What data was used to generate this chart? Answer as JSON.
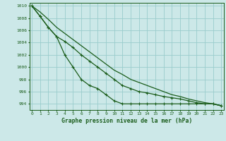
{
  "xlabel": "Graphe pression niveau de la mer (hPa)",
  "x": [
    0,
    1,
    2,
    3,
    4,
    5,
    6,
    7,
    8,
    9,
    10,
    11,
    12,
    13,
    14,
    15,
    16,
    17,
    18,
    19,
    20,
    21,
    22,
    23
  ],
  "line1": [
    1010,
    1008.3,
    1006.5,
    1005.0,
    1002.0,
    1000.0,
    998.0,
    997.0,
    996.5,
    995.5,
    994.5,
    994.0,
    994.0,
    994.0,
    994.0,
    994.0,
    994.0,
    994.0,
    994.0,
    994.0,
    994.0,
    994.0,
    994.0,
    993.7
  ],
  "line2": [
    1010,
    1008.3,
    1006.5,
    1005.0,
    1004.2,
    1003.2,
    1002.0,
    1001.0,
    1000.0,
    999.0,
    998.0,
    997.0,
    996.5,
    996.0,
    995.8,
    995.5,
    995.2,
    995.0,
    994.8,
    994.5,
    994.2,
    994.0,
    994.0,
    993.7
  ],
  "line3": [
    1010,
    1009.0,
    1007.8,
    1006.5,
    1005.5,
    1004.5,
    1003.5,
    1002.5,
    1001.5,
    1000.5,
    999.5,
    998.8,
    998.0,
    997.5,
    997.0,
    996.5,
    996.0,
    995.5,
    995.2,
    994.8,
    994.5,
    994.2,
    994.0,
    993.7
  ],
  "bg_color": "#cce8e8",
  "grid_color": "#99cccc",
  "line_color": "#1a5c1a",
  "ylim": [
    993.0,
    1010.5
  ],
  "xlim": [
    -0.3,
    23.3
  ],
  "yticks": [
    994,
    996,
    998,
    1000,
    1002,
    1004,
    1006,
    1008,
    1010
  ],
  "xticks": [
    0,
    1,
    2,
    3,
    4,
    5,
    6,
    7,
    8,
    9,
    10,
    11,
    12,
    13,
    14,
    15,
    16,
    17,
    18,
    19,
    20,
    21,
    22,
    23
  ]
}
